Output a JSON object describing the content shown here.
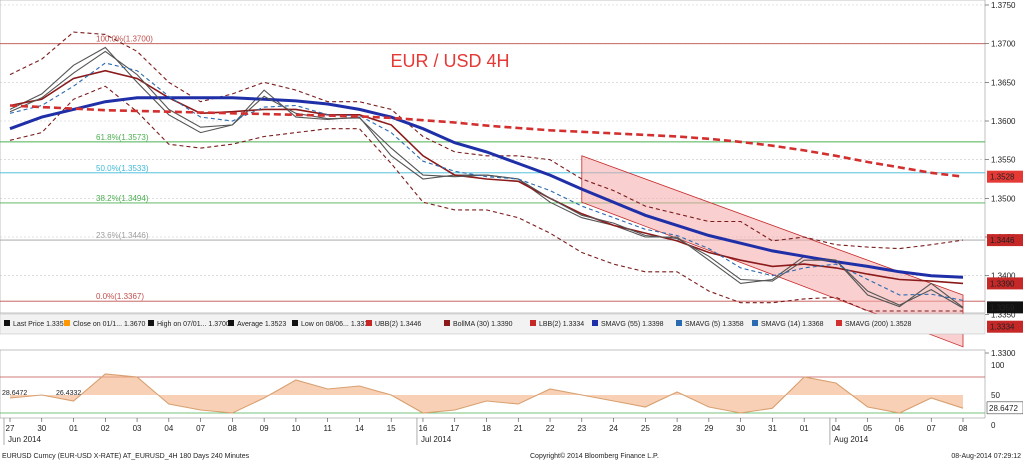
{
  "chart_data": [
    {
      "type": "line",
      "title": "EUR / USD 4H",
      "x_ticks": [
        "27",
        "30",
        "01",
        "02",
        "03",
        "04",
        "07",
        "08",
        "09",
        "10",
        "11",
        "14",
        "15",
        "16",
        "17",
        "18",
        "21",
        "22",
        "23",
        "24",
        "25",
        "28",
        "29",
        "30",
        "31",
        "01",
        "04",
        "05",
        "06",
        "07",
        "08"
      ],
      "x_month_labels": [
        {
          "label": "Jun 2014",
          "at_tick": 0
        },
        {
          "label": "Jul 2014",
          "at_tick": 13
        },
        {
          "label": "Aug 2014",
          "at_tick": 26
        }
      ],
      "ylim": [
        1.33,
        1.375
      ],
      "y_ticks": [
        "1.3750",
        "1.3700",
        "1.3650",
        "1.3600",
        "1.3550",
        "1.3500",
        "1.3450",
        "1.3400",
        "1.3350",
        "1.3300"
      ],
      "grid": true,
      "fib_levels": [
        {
          "label": "100.0%(1.3700)",
          "value": 1.37,
          "color": "#c0504d"
        },
        {
          "label": "61.8%(1.3573)",
          "value": 1.3573,
          "color": "#4caf50"
        },
        {
          "label": "50.0%(1.3533)",
          "value": 1.3533,
          "color": "#3fb8d8"
        },
        {
          "label": "38.2%(1.3494)",
          "value": 1.3494,
          "color": "#4caf50"
        },
        {
          "label": "23.6%(1.3446)",
          "value": 1.3446,
          "color": "#9e9e9e"
        },
        {
          "label": "0.0%(1.3367)",
          "value": 1.3367,
          "color": "#c0504d"
        }
      ],
      "price_tags": [
        {
          "label": "1.3528",
          "value": 1.3528,
          "color": "#e53935"
        },
        {
          "label": "1.3446",
          "value": 1.3446,
          "color": "#c62828"
        },
        {
          "label": "1.3390",
          "value": 1.339,
          "color": "#c62828"
        },
        {
          "label": "1.3359",
          "value": 1.3359,
          "color": "#111111"
        },
        {
          "label": "1.3334",
          "value": 1.3334,
          "color": "#c62828"
        }
      ],
      "series": [
        {
          "name": "Last Price",
          "color": "#555555",
          "values": [
            1.3615,
            1.3635,
            1.3672,
            1.3695,
            1.365,
            1.3608,
            1.3585,
            1.3595,
            1.364,
            1.3605,
            1.3602,
            1.3605,
            1.3555,
            1.3525,
            1.353,
            1.353,
            1.3525,
            1.3495,
            1.3475,
            1.3465,
            1.345,
            1.345,
            1.342,
            1.339,
            1.3395,
            1.3425,
            1.342,
            1.3375,
            1.336,
            1.339,
            1.3359
          ]
        },
        {
          "name": "UBB(2)",
          "color": "#7b1c1c",
          "dashed": true,
          "values": [
            1.366,
            1.368,
            1.3715,
            1.3712,
            1.369,
            1.365,
            1.3625,
            1.3635,
            1.365,
            1.364,
            1.3625,
            1.3625,
            1.3615,
            1.358,
            1.356,
            1.3555,
            1.3555,
            1.355,
            1.3525,
            1.351,
            1.349,
            1.348,
            1.347,
            1.347,
            1.3445,
            1.345,
            1.344,
            1.3437,
            1.3435,
            1.344,
            1.3446
          ]
        },
        {
          "name": "LBB(2)",
          "color": "#7b1c1c",
          "dashed": true,
          "values": [
            1.3575,
            1.3585,
            1.3628,
            1.3645,
            1.3612,
            1.357,
            1.3565,
            1.357,
            1.358,
            1.3585,
            1.359,
            1.359,
            1.3545,
            1.3495,
            1.3485,
            1.3485,
            1.3475,
            1.3455,
            1.343,
            1.3415,
            1.3405,
            1.3405,
            1.338,
            1.3365,
            1.3365,
            1.337,
            1.3372,
            1.335,
            1.334,
            1.3333,
            1.3334
          ]
        },
        {
          "name": "BollMA (30)",
          "color": "#8b1a1a",
          "values": [
            1.362,
            1.3628,
            1.3655,
            1.3665,
            1.3655,
            1.363,
            1.361,
            1.3612,
            1.3615,
            1.3615,
            1.3608,
            1.3608,
            1.3595,
            1.3555,
            1.353,
            1.3525,
            1.3522,
            1.35,
            1.348,
            1.3465,
            1.3455,
            1.3445,
            1.343,
            1.342,
            1.3412,
            1.3415,
            1.341,
            1.3402,
            1.3395,
            1.3393,
            1.339
          ]
        },
        {
          "name": "SMAVG (55)",
          "color": "#1f2fa8",
          "values": [
            1.359,
            1.3605,
            1.3615,
            1.3625,
            1.363,
            1.363,
            1.363,
            1.363,
            1.3628,
            1.3626,
            1.3622,
            1.3615,
            1.3605,
            1.359,
            1.3572,
            1.356,
            1.3545,
            1.353,
            1.3512,
            1.3495,
            1.3478,
            1.3465,
            1.3452,
            1.3442,
            1.3432,
            1.3425,
            1.3418,
            1.3412,
            1.3405,
            1.34,
            1.3398
          ]
        },
        {
          "name": "SMAVG (5)",
          "color": "#555555",
          "values": [
            1.3612,
            1.363,
            1.3662,
            1.369,
            1.366,
            1.3615,
            1.3592,
            1.3595,
            1.3632,
            1.361,
            1.3603,
            1.3604,
            1.3565,
            1.353,
            1.3528,
            1.353,
            1.3525,
            1.35,
            1.3478,
            1.3468,
            1.3452,
            1.3448,
            1.3425,
            1.3395,
            1.3393,
            1.342,
            1.342,
            1.338,
            1.3362,
            1.3382,
            1.3358
          ]
        },
        {
          "name": "SMAVG (14)",
          "color": "#2a6ab0",
          "dashed": true,
          "values": [
            1.361,
            1.362,
            1.3645,
            1.3675,
            1.3665,
            1.3632,
            1.3605,
            1.36,
            1.3618,
            1.362,
            1.3608,
            1.3607,
            1.3585,
            1.3548,
            1.3535,
            1.3528,
            1.3525,
            1.351,
            1.349,
            1.3475,
            1.346,
            1.3452,
            1.3435,
            1.341,
            1.34,
            1.341,
            1.3415,
            1.3395,
            1.3375,
            1.3376,
            1.3368
          ]
        },
        {
          "name": "SMAVG (200)",
          "color": "#d32f2f",
          "dashed": true,
          "values": [
            1.362,
            1.3618,
            1.3616,
            1.3614,
            1.3613,
            1.3612,
            1.3611,
            1.361,
            1.3609,
            1.3608,
            1.3607,
            1.3606,
            1.3604,
            1.3601,
            1.3598,
            1.3594,
            1.3591,
            1.3588,
            1.3586,
            1.3584,
            1.3582,
            1.358,
            1.3577,
            1.3573,
            1.3568,
            1.3562,
            1.3555,
            1.3547,
            1.354,
            1.3533,
            1.3528
          ]
        }
      ],
      "channel": {
        "color": "#f4a7a7",
        "upper_start": {
          "x_index": 18,
          "value": 1.3555
        },
        "upper_end": {
          "x_index": 30,
          "value": 1.3375
        },
        "lower_start": {
          "x_index": 18,
          "value": 1.3495
        },
        "lower_end": {
          "x_index": 30,
          "value": 1.3308
        }
      },
      "legend": [
        {
          "label": "Last Price 1.3359",
          "color": "#111111"
        },
        {
          "label": "Close on 01/1... 1.3670",
          "color": "#ff9800"
        },
        {
          "label": "High on 07/01... 1.3700",
          "color": "#111111"
        },
        {
          "label": "Average 1.3523",
          "color": "#111111"
        },
        {
          "label": "Low on 08/06... 1.3333",
          "color": "#111111"
        },
        {
          "label": "UBB(2) 1.3446",
          "color": "#c62828"
        },
        {
          "label": "BollMA (30) 1.3390",
          "color": "#8b1a1a"
        },
        {
          "label": "LBB(2) 1.3334",
          "color": "#c62828"
        },
        {
          "label": "SMAVG (55) 1.3398",
          "color": "#1f2fa8"
        },
        {
          "label": "SMAVG (5) 1.3358",
          "color": "#2a6ab0"
        },
        {
          "label": "SMAVG (14) 1.3368",
          "color": "#2a6ab0"
        },
        {
          "label": "SMAVG (200) 1.3528",
          "color": "#d32f2f"
        }
      ]
    },
    {
      "type": "area",
      "ylim": [
        0,
        100
      ],
      "y_ticks": [
        "100",
        "50",
        "0"
      ],
      "value_tags": [
        "28.6472"
      ],
      "left_labels": [
        {
          "label": "28.6472",
          "color": "#111111"
        },
        {
          "label": "26.4332",
          "color": "#ff9800"
        }
      ],
      "series": [
        {
          "name": "oscillator",
          "color": "#d8a070",
          "values": [
            45,
            50,
            40,
            85,
            80,
            35,
            25,
            20,
            45,
            75,
            60,
            65,
            50,
            20,
            25,
            40,
            35,
            60,
            50,
            40,
            30,
            55,
            30,
            20,
            28,
            80,
            70,
            30,
            20,
            45,
            28
          ]
        }
      ]
    }
  ],
  "footer": {
    "left": "EURUSD Curncy (EUR-USD X-RATE) AT_EURUSD_4H 180 Days 240 Minutes",
    "center": "Copyright© 2014 Bloomberg Finance L.P.",
    "right": "08-Aug-2014 07:29:12"
  }
}
